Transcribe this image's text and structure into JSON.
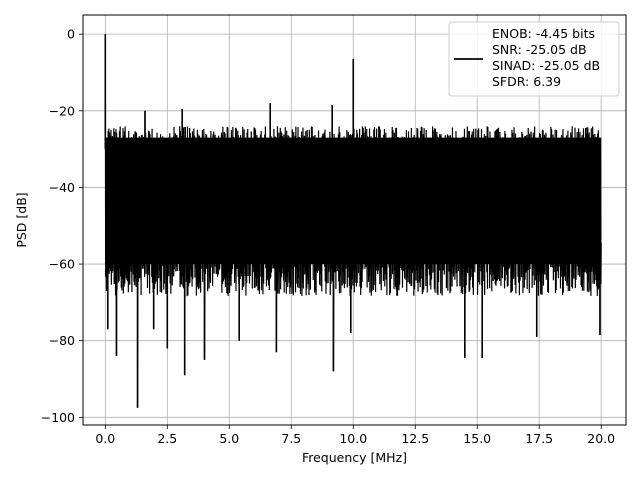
{
  "chart_data": {
    "type": "line",
    "title": "",
    "xlabel": "Frequency [MHz]",
    "ylabel": "PSD [dB]",
    "xlim": [
      -0.9,
      21.0
    ],
    "ylim": [
      -102,
      5
    ],
    "xticks": [
      0.0,
      2.5,
      5.0,
      7.5,
      10.0,
      12.5,
      15.0,
      17.5,
      20.0
    ],
    "xtick_labels": [
      "0.0",
      "2.5",
      "5.0",
      "7.5",
      "10.0",
      "12.5",
      "15.0",
      "17.5",
      "20.0"
    ],
    "yticks": [
      0,
      -20,
      -40,
      -60,
      -80,
      -100
    ],
    "ytick_labels": [
      "0",
      "−20",
      "−40",
      "−60",
      "−80",
      "−100"
    ],
    "grid": true,
    "legend_position": "upper right",
    "line_color": "#000000",
    "series": [
      {
        "legend_lines": [
          "ENOB: -4.45 bits",
          "SNR: -25.05 dB",
          "SINAD: -25.05 dB",
          "SFDR: 6.39"
        ],
        "noise_ceiling_db": -24,
        "noise_median_db": -45,
        "noise_floor_typical_db": -66,
        "x_range": [
          0.0,
          20.0
        ],
        "peaks": [
          {
            "x": 0.0,
            "y": 0
          },
          {
            "x": 10.0,
            "y": -6.5
          },
          {
            "x": 1.6,
            "y": -20
          },
          {
            "x": 3.1,
            "y": -19.5
          },
          {
            "x": 6.65,
            "y": -18
          },
          {
            "x": 9.15,
            "y": -18.5
          }
        ],
        "dips": [
          {
            "x": 0.1,
            "y": -77
          },
          {
            "x": 0.45,
            "y": -84
          },
          {
            "x": 1.3,
            "y": -97.5
          },
          {
            "x": 1.95,
            "y": -77
          },
          {
            "x": 2.5,
            "y": -82
          },
          {
            "x": 3.2,
            "y": -89
          },
          {
            "x": 4.0,
            "y": -85
          },
          {
            "x": 5.4,
            "y": -80
          },
          {
            "x": 6.9,
            "y": -83
          },
          {
            "x": 9.2,
            "y": -88
          },
          {
            "x": 9.9,
            "y": -78
          },
          {
            "x": 14.5,
            "y": -84.5
          },
          {
            "x": 15.2,
            "y": -84.5
          },
          {
            "x": 17.4,
            "y": -79
          },
          {
            "x": 19.95,
            "y": -78.5
          }
        ]
      }
    ]
  }
}
